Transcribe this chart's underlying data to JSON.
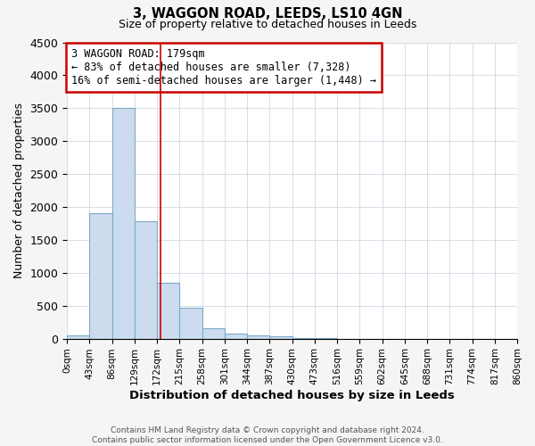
{
  "title": "3, WAGGON ROAD, LEEDS, LS10 4GN",
  "subtitle": "Size of property relative to detached houses in Leeds",
  "xlabel": "Distribution of detached houses by size in Leeds",
  "ylabel": "Number of detached properties",
  "bar_edges": [
    0,
    43,
    86,
    129,
    172,
    215,
    258,
    301,
    344,
    387,
    430,
    473,
    516,
    559,
    602,
    645,
    688,
    731,
    774,
    817,
    860
  ],
  "bar_heights": [
    50,
    1900,
    3500,
    1780,
    850,
    470,
    155,
    80,
    55,
    30,
    10,
    5,
    0,
    0,
    0,
    0,
    0,
    0,
    0,
    0
  ],
  "bar_color": "#ccdcee",
  "bar_edgecolor": "#7aaac8",
  "property_size": 179,
  "annotation_title": "3 WAGGON ROAD: 179sqm",
  "annotation_line1": "← 83% of detached houses are smaller (7,328)",
  "annotation_line2": "16% of semi-detached houses are larger (1,448) →",
  "annotation_box_color": "#cc0000",
  "vline_color": "#cc0000",
  "ylim": [
    0,
    4500
  ],
  "yticks": [
    0,
    500,
    1000,
    1500,
    2000,
    2500,
    3000,
    3500,
    4000,
    4500
  ],
  "xtick_labels": [
    "0sqm",
    "43sqm",
    "86sqm",
    "129sqm",
    "172sqm",
    "215sqm",
    "258sqm",
    "301sqm",
    "344sqm",
    "387sqm",
    "430sqm",
    "473sqm",
    "516sqm",
    "559sqm",
    "602sqm",
    "645sqm",
    "688sqm",
    "731sqm",
    "774sqm",
    "817sqm",
    "860sqm"
  ],
  "footer_line1": "Contains HM Land Registry data © Crown copyright and database right 2024.",
  "footer_line2": "Contains public sector information licensed under the Open Government Licence v3.0.",
  "bg_color": "#f5f5f5",
  "plot_bg_color": "#ffffff",
  "grid_color": "#d0d8e4"
}
